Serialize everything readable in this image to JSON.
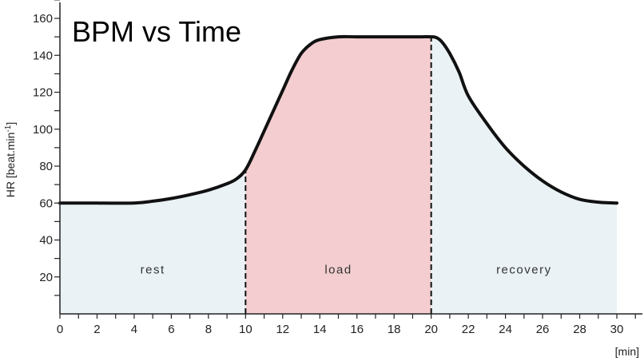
{
  "chart_data": {
    "type": "area",
    "title": "BPM vs Time",
    "xlabel": "[min]",
    "ylabel": "HR [beat.min",
    "ylabel_superscript": "-1",
    "ylabel_close": "]",
    "xlim": [
      0,
      30
    ],
    "ylim": [
      0,
      160
    ],
    "x_ticks": [
      0,
      2,
      4,
      6,
      8,
      10,
      12,
      14,
      16,
      18,
      20,
      22,
      24,
      26,
      28,
      30
    ],
    "y_ticks": [
      20,
      40,
      60,
      80,
      100,
      120,
      140,
      160
    ],
    "grid": false,
    "series": [
      {
        "x": [
          0,
          2,
          4,
          5,
          6,
          7,
          8,
          9,
          9.5,
          10,
          10.5,
          11,
          12,
          12.5,
          13,
          13.5,
          14,
          15,
          16,
          18,
          19,
          19.5,
          20,
          20.3,
          20.6,
          21,
          21.5,
          22,
          23,
          24,
          25,
          26,
          27,
          28,
          29,
          30
        ],
        "y": [
          60,
          60,
          60,
          61,
          62.5,
          64.5,
          67,
          70.5,
          73,
          78,
          88,
          99,
          121,
          132,
          141,
          146,
          148.5,
          150,
          150,
          150,
          150,
          150,
          150,
          149.5,
          147,
          141,
          131,
          118,
          103,
          90,
          80,
          72,
          66,
          62,
          60.5,
          60
        ]
      }
    ],
    "phases": [
      {
        "label": "rest",
        "x_start": 0,
        "x_end": 10,
        "color": "#eaf2f6"
      },
      {
        "label": "load",
        "x_start": 10,
        "x_end": 20,
        "color": "#f3cdcf"
      },
      {
        "label": "recovery",
        "x_start": 20,
        "x_end": 30,
        "color": "#eaf2f6"
      }
    ],
    "phase_boundaries": [
      10,
      20
    ],
    "phase_label_y": 24,
    "line_color": "#111111"
  }
}
